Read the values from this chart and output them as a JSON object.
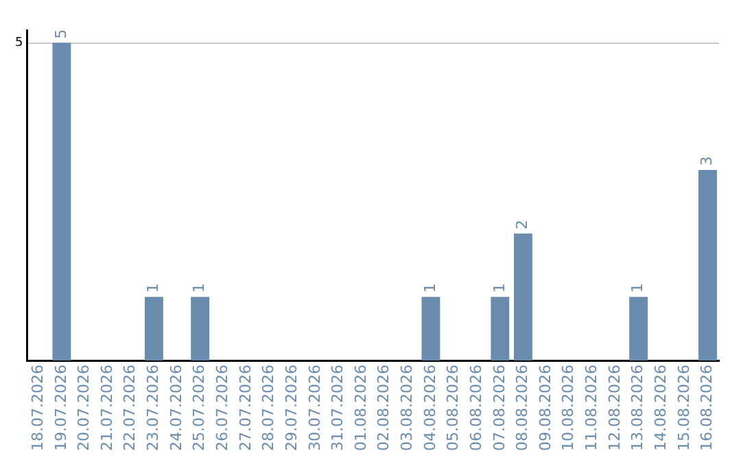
{
  "chart_data": {
    "type": "bar",
    "categories": [
      "18.07.2026",
      "19.07.2026",
      "20.07.2026",
      "21.07.2026",
      "22.07.2026",
      "23.07.2026",
      "24.07.2026",
      "25.07.2026",
      "26.07.2026",
      "27.07.2026",
      "28.07.2026",
      "29.07.2026",
      "30.07.2026",
      "31.07.2026",
      "01.08.2026",
      "02.08.2026",
      "03.08.2026",
      "04.08.2026",
      "05.08.2026",
      "06.08.2026",
      "07.08.2026",
      "08.08.2026",
      "09.08.2026",
      "10.08.2026",
      "11.08.2026",
      "12.08.2026",
      "13.08.2026",
      "14.08.2026",
      "15.08.2026",
      "16.08.2026"
    ],
    "values": [
      0,
      5,
      0,
      0,
      0,
      1,
      0,
      1,
      0,
      0,
      0,
      0,
      0,
      0,
      0,
      0,
      0,
      1,
      0,
      0,
      1,
      2,
      0,
      0,
      0,
      0,
      1,
      0,
      0,
      3
    ],
    "value_labels": [
      null,
      "5",
      null,
      null,
      null,
      "1",
      null,
      "1",
      null,
      null,
      null,
      null,
      null,
      null,
      null,
      null,
      null,
      "1",
      null,
      null,
      "1",
      "2",
      null,
      null,
      null,
      null,
      "1",
      null,
      null,
      "3"
    ],
    "color": "#6a8caf",
    "ylim": [
      0,
      5.2
    ],
    "yticks": [
      5
    ],
    "grid": "y",
    "legend": false
  }
}
